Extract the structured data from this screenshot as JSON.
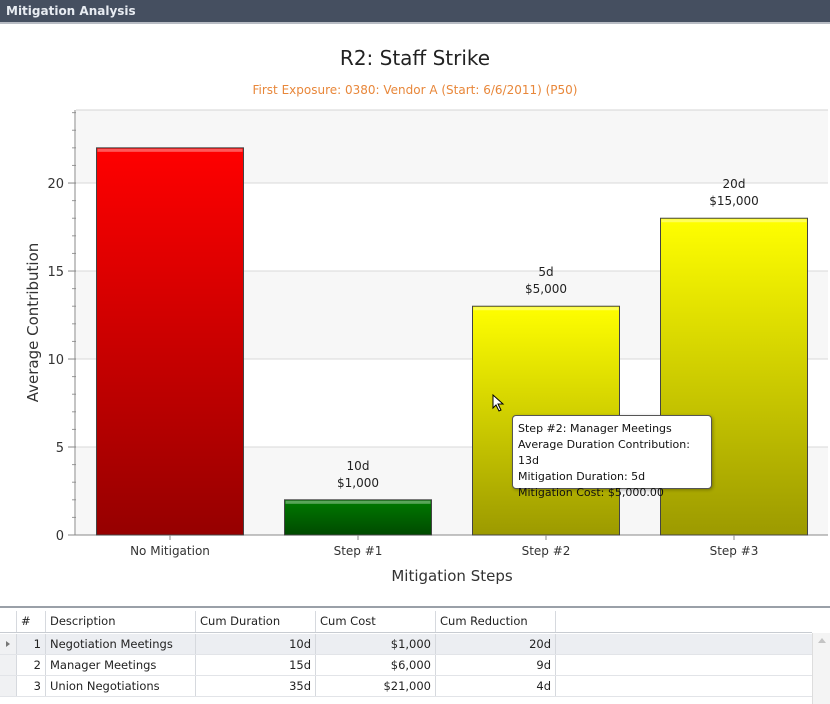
{
  "window": {
    "title": "Mitigation Analysis"
  },
  "chart_data": {
    "type": "bar",
    "title": "R2: Staff Strike",
    "subtitle": "First Exposure: 0380: Vendor A (Start: 6/6/2011) (P50)",
    "xlabel": "Mitigation Steps",
    "ylabel": "Average Contribution",
    "categories": [
      "No Mitigation",
      "Step #1",
      "Step #2",
      "Step #3"
    ],
    "values": [
      22,
      2,
      13,
      18
    ],
    "colors": [
      "#ff0000",
      "#007a00",
      "#ffff00",
      "#ffff00"
    ],
    "data_labels": [
      null,
      [
        "10d",
        "$1,000"
      ],
      [
        "5d",
        "$5,000"
      ],
      [
        "20d",
        "$15,000"
      ]
    ],
    "ylim": [
      0,
      24
    ],
    "yticks": [
      0,
      5,
      10,
      15,
      20
    ],
    "grid": true
  },
  "tooltip": {
    "lines": [
      "Step #2: Manager Meetings",
      "Average Duration Contribution: 13d",
      "Mitigation Duration: 5d",
      "Mitigation Cost: $5,000.00"
    ]
  },
  "table": {
    "columns": [
      "#",
      "Description",
      "Cum Duration",
      "Cum Cost",
      "Cum Reduction"
    ],
    "rows": [
      [
        "1",
        "Negotiation Meetings",
        "10d",
        "$1,000",
        "20d"
      ],
      [
        "2",
        "Manager Meetings",
        "15d",
        "$6,000",
        "9d"
      ],
      [
        "3",
        "Union Negotiations",
        "35d",
        "$21,000",
        "4d"
      ]
    ]
  }
}
